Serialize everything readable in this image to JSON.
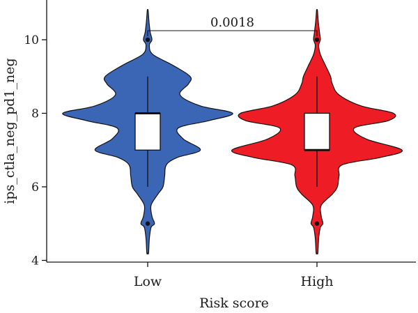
{
  "chart_data": {
    "type": "violin",
    "xlabel": "Risk score",
    "ylabel": "ips_ctla_neg_pd1_neg",
    "categories": [
      "Low",
      "High"
    ],
    "ylim": [
      3.85,
      10.95
    ],
    "yticks": [
      4,
      6,
      8,
      10
    ],
    "grid": false,
    "legend": "none",
    "comparison": {
      "label": "0.0018",
      "between": [
        "Low",
        "High"
      ],
      "y": 10.25
    },
    "series": [
      {
        "category": "Low",
        "color": "#3a66b5",
        "box": {
          "q1": 7,
          "median": 8,
          "q3": 8,
          "whisker_low": 6,
          "whisker_high": 9
        },
        "outliers": [
          10,
          5
        ],
        "range": [
          4.2,
          10.8
        ],
        "density_profile": [
          [
            4.2,
            0.01
          ],
          [
            4.6,
            0.02
          ],
          [
            4.9,
            0.04
          ],
          [
            5.0,
            0.08
          ],
          [
            5.2,
            0.05
          ],
          [
            5.5,
            0.04
          ],
          [
            5.8,
            0.12
          ],
          [
            6.0,
            0.18
          ],
          [
            6.3,
            0.2
          ],
          [
            6.6,
            0.22
          ],
          [
            6.8,
            0.35
          ],
          [
            7.0,
            0.62
          ],
          [
            7.3,
            0.42
          ],
          [
            7.6,
            0.36
          ],
          [
            7.8,
            0.72
          ],
          [
            8.0,
            1.0
          ],
          [
            8.2,
            0.62
          ],
          [
            8.5,
            0.38
          ],
          [
            8.8,
            0.48
          ],
          [
            9.0,
            0.5
          ],
          [
            9.3,
            0.3
          ],
          [
            9.6,
            0.06
          ],
          [
            9.85,
            0.02
          ],
          [
            10.0,
            0.05
          ],
          [
            10.2,
            0.03
          ],
          [
            10.5,
            0.015
          ],
          [
            10.8,
            0.005
          ]
        ]
      },
      {
        "category": "High",
        "color": "#ee1c24",
        "box": {
          "q1": 7,
          "median": 7,
          "q3": 8,
          "whisker_low": 6,
          "whisker_high": 9
        },
        "outliers": [
          10,
          5
        ],
        "range": [
          4.2,
          10.8
        ],
        "density_profile": [
          [
            4.2,
            0.01
          ],
          [
            4.6,
            0.02
          ],
          [
            4.9,
            0.04
          ],
          [
            5.0,
            0.07
          ],
          [
            5.2,
            0.05
          ],
          [
            5.5,
            0.05
          ],
          [
            5.8,
            0.18
          ],
          [
            6.0,
            0.24
          ],
          [
            6.3,
            0.26
          ],
          [
            6.6,
            0.3
          ],
          [
            6.8,
            0.75
          ],
          [
            7.0,
            1.0
          ],
          [
            7.3,
            0.58
          ],
          [
            7.6,
            0.44
          ],
          [
            7.8,
            0.84
          ],
          [
            8.0,
            0.9
          ],
          [
            8.2,
            0.52
          ],
          [
            8.5,
            0.26
          ],
          [
            8.8,
            0.18
          ],
          [
            9.0,
            0.16
          ],
          [
            9.3,
            0.1
          ],
          [
            9.6,
            0.04
          ],
          [
            9.85,
            0.02
          ],
          [
            10.0,
            0.04
          ],
          [
            10.2,
            0.03
          ],
          [
            10.5,
            0.015
          ],
          [
            10.8,
            0.005
          ]
        ]
      }
    ]
  }
}
